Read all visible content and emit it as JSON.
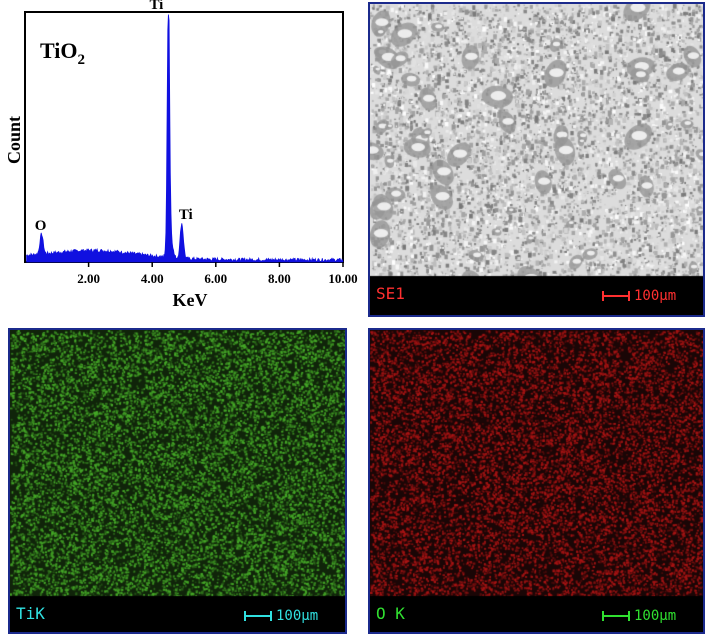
{
  "spectrum": {
    "sample_label_main": "TiO",
    "sample_label_sub": "2",
    "chart_data": {
      "type": "line",
      "xlabel": "KeV",
      "ylabel": "Count",
      "xlim": [
        0,
        10
      ],
      "ylim": [
        0,
        100
      ],
      "xticks": [
        "2.00",
        "4.00",
        "6.00",
        "8.00",
        "10.00"
      ],
      "xtick_values": [
        2,
        4,
        6,
        8,
        10
      ],
      "series_color": "#1010e0",
      "peaks": [
        {
          "label": "O",
          "x": 0.52,
          "y": 8
        },
        {
          "label": "Ti",
          "x": 4.51,
          "y": 98
        },
        {
          "label": "Ti",
          "x": 4.93,
          "y": 14
        }
      ]
    }
  },
  "panels": {
    "se": {
      "label": "SE1",
      "scale": "100μm",
      "label_color": "#ff3030",
      "scale_color": "#ff3030"
    },
    "ti": {
      "label": "TiK",
      "scale": "100μm",
      "label_color": "#30e0e0",
      "scale_color": "#30e0e0"
    },
    "o": {
      "label": "O K",
      "scale": "100μm",
      "label_color": "#30e030",
      "scale_color": "#30e030"
    }
  }
}
